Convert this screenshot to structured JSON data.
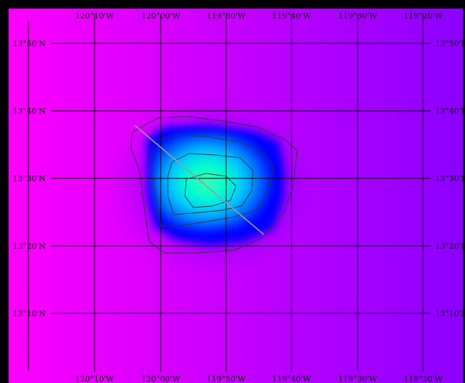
{
  "map": {
    "longitude_labels": [
      "120°10'W",
      "120°00'W",
      "119°50'W",
      "119°40'W",
      "119°30'W",
      "119°20'W"
    ],
    "latitude_labels": [
      "13°50'N",
      "13°40'N",
      "13°30'N",
      "13°20'N",
      "13°10'N"
    ],
    "colors": {
      "background_left": "#ff00ff",
      "background_right": "#8a00ff",
      "field_low": "#0000ff",
      "field_mid": "#00aaff",
      "field_high": "#00ffcc",
      "field_peak": "#40ffb0",
      "grid": "#000000",
      "contour": "#333333",
      "transect": "#9a9a9a",
      "frame": "#000000"
    },
    "icons": [
      "lat-lon-grid",
      "contour-lines",
      "transect-line"
    ]
  }
}
